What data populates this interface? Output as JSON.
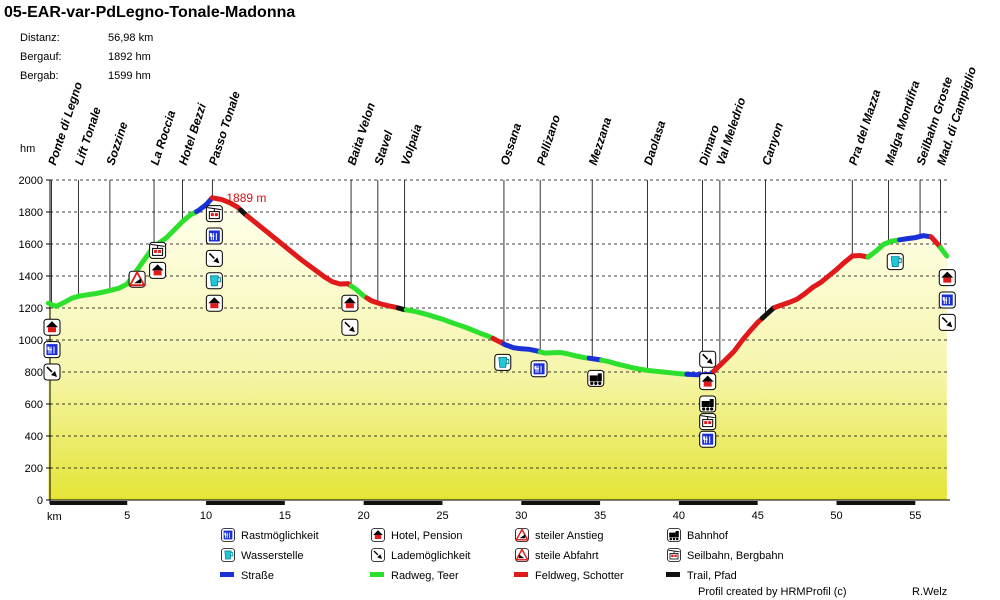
{
  "header": {
    "title": "05-EAR-var-PdLegno-Tonale-Madonna",
    "stats": [
      {
        "label": "Distanz:",
        "value": "56,98 km"
      },
      {
        "label": "Bergauf:",
        "value": "1892 hm"
      },
      {
        "label": "Bergab:",
        "value": "1599 hm"
      }
    ]
  },
  "chart_data": {
    "type": "area",
    "ylabel": "hm",
    "xlabel": "km",
    "xlim": [
      0,
      57
    ],
    "ylim": [
      0,
      2000
    ],
    "xticks": [
      5,
      10,
      15,
      20,
      25,
      30,
      35,
      40,
      45,
      50,
      55
    ],
    "yticks": [
      0,
      200,
      400,
      600,
      800,
      1000,
      1200,
      1400,
      1600,
      1800,
      2000
    ],
    "grid": "dashed horizontal",
    "max_label": "1889 m",
    "max_point": {
      "x": 10.4,
      "y": 1889
    },
    "profile": [
      [
        0,
        1230
      ],
      [
        0.5,
        1210
      ],
      [
        1,
        1235
      ],
      [
        1.5,
        1262
      ],
      [
        2,
        1275
      ],
      [
        2.5,
        1283
      ],
      [
        3,
        1290
      ],
      [
        3.5,
        1300
      ],
      [
        4,
        1312
      ],
      [
        4.5,
        1325
      ],
      [
        5,
        1350
      ],
      [
        5.5,
        1420
      ],
      [
        6,
        1490
      ],
      [
        6.5,
        1560
      ],
      [
        7,
        1605
      ],
      [
        7.5,
        1640
      ],
      [
        8,
        1690
      ],
      [
        8.5,
        1740
      ],
      [
        9,
        1782
      ],
      [
        9.5,
        1808
      ],
      [
        10,
        1845
      ],
      [
        10.4,
        1889
      ],
      [
        11,
        1878
      ],
      [
        11.5,
        1858
      ],
      [
        12,
        1830
      ],
      [
        12.5,
        1785
      ],
      [
        13,
        1745
      ],
      [
        13.5,
        1705
      ],
      [
        14,
        1665
      ],
      [
        14.5,
        1625
      ],
      [
        15,
        1585
      ],
      [
        15.5,
        1545
      ],
      [
        16,
        1505
      ],
      [
        16.5,
        1468
      ],
      [
        17,
        1432
      ],
      [
        17.5,
        1395
      ],
      [
        18,
        1365
      ],
      [
        18.5,
        1350
      ],
      [
        19,
        1352
      ],
      [
        19.5,
        1318
      ],
      [
        20,
        1275
      ],
      [
        20.5,
        1245
      ],
      [
        21,
        1228
      ],
      [
        21.5,
        1215
      ],
      [
        22,
        1205
      ],
      [
        22.5,
        1192
      ],
      [
        23,
        1184
      ],
      [
        23.5,
        1173
      ],
      [
        24,
        1160
      ],
      [
        24.5,
        1145
      ],
      [
        25,
        1130
      ],
      [
        25.5,
        1112
      ],
      [
        26,
        1095
      ],
      [
        26.5,
        1078
      ],
      [
        27,
        1058
      ],
      [
        27.5,
        1038
      ],
      [
        28,
        1020
      ],
      [
        28.5,
        995
      ],
      [
        29,
        970
      ],
      [
        29.5,
        952
      ],
      [
        30,
        945
      ],
      [
        30.5,
        942
      ],
      [
        31,
        932
      ],
      [
        31.5,
        918
      ],
      [
        32,
        920
      ],
      [
        32.5,
        922
      ],
      [
        33,
        912
      ],
      [
        33.5,
        900
      ],
      [
        34,
        890
      ],
      [
        34.5,
        884
      ],
      [
        35,
        876
      ],
      [
        35.5,
        866
      ],
      [
        36,
        852
      ],
      [
        36.5,
        840
      ],
      [
        37,
        828
      ],
      [
        37.5,
        818
      ],
      [
        38,
        810
      ],
      [
        38.5,
        805
      ],
      [
        39,
        800
      ],
      [
        39.5,
        795
      ],
      [
        40,
        790
      ],
      [
        40.5,
        786
      ],
      [
        41,
        784
      ],
      [
        41.5,
        783
      ],
      [
        42,
        786
      ],
      [
        42.5,
        832
      ],
      [
        43,
        880
      ],
      [
        43.5,
        930
      ],
      [
        44,
        995
      ],
      [
        44.5,
        1055
      ],
      [
        45,
        1110
      ],
      [
        45.5,
        1155
      ],
      [
        46,
        1200
      ],
      [
        46.5,
        1218
      ],
      [
        47,
        1235
      ],
      [
        47.5,
        1255
      ],
      [
        48,
        1290
      ],
      [
        48.5,
        1330
      ],
      [
        49,
        1360
      ],
      [
        49.5,
        1400
      ],
      [
        50,
        1440
      ],
      [
        50.5,
        1485
      ],
      [
        51,
        1525
      ],
      [
        51.5,
        1528
      ],
      [
        52,
        1518
      ],
      [
        52.5,
        1555
      ],
      [
        53,
        1598
      ],
      [
        53.5,
        1618
      ],
      [
        54,
        1626
      ],
      [
        54.5,
        1634
      ],
      [
        55,
        1640
      ],
      [
        55.5,
        1652
      ],
      [
        56,
        1645
      ],
      [
        56.5,
        1590
      ],
      [
        57,
        1525
      ]
    ],
    "segments": [
      {
        "from": 0,
        "to": 9.4,
        "surface": "Radweg, Teer"
      },
      {
        "from": 9.4,
        "to": 10.4,
        "surface": "Straße"
      },
      {
        "from": 10.4,
        "to": 12.2,
        "surface": "Feldweg, Schotter"
      },
      {
        "from": 12.2,
        "to": 12.6,
        "surface": "Trail, Pfad"
      },
      {
        "from": 12.6,
        "to": 19.2,
        "surface": "Feldweg, Schotter"
      },
      {
        "from": 19.2,
        "to": 20.2,
        "surface": "Radweg, Teer"
      },
      {
        "from": 20.2,
        "to": 22.2,
        "surface": "Feldweg, Schotter"
      },
      {
        "from": 22.2,
        "to": 22.7,
        "surface": "Trail, Pfad"
      },
      {
        "from": 22.7,
        "to": 28.2,
        "surface": "Radweg, Teer"
      },
      {
        "from": 28.2,
        "to": 28.9,
        "surface": "Feldweg, Schotter"
      },
      {
        "from": 28.9,
        "to": 31.2,
        "surface": "Straße"
      },
      {
        "from": 31.2,
        "to": 34.3,
        "surface": "Radweg, Teer"
      },
      {
        "from": 34.3,
        "to": 35.1,
        "surface": "Straße"
      },
      {
        "from": 35.1,
        "to": 40.5,
        "surface": "Radweg, Teer"
      },
      {
        "from": 40.5,
        "to": 42.2,
        "surface": "Straße"
      },
      {
        "from": 42.2,
        "to": 45.3,
        "surface": "Feldweg, Schotter"
      },
      {
        "from": 45.3,
        "to": 46.1,
        "surface": "Trail, Pfad"
      },
      {
        "from": 46.1,
        "to": 52.0,
        "surface": "Feldweg, Schotter"
      },
      {
        "from": 52.0,
        "to": 54.0,
        "surface": "Radweg, Teer"
      },
      {
        "from": 54.0,
        "to": 56.0,
        "surface": "Straße"
      },
      {
        "from": 56.0,
        "to": 56.6,
        "surface": "Feldweg, Schotter"
      },
      {
        "from": 56.6,
        "to": 57,
        "surface": "Radweg, Teer"
      }
    ],
    "places": [
      {
        "name": "Ponte di Legno",
        "km": 0.2
      },
      {
        "name": "Lift Tonale",
        "km": 1.9
      },
      {
        "name": "Sozzine",
        "km": 3.9
      },
      {
        "name": "La Roccia",
        "km": 6.7
      },
      {
        "name": "Hotel Bezzi",
        "km": 8.5
      },
      {
        "name": "Passo Tonale",
        "km": 10.4
      },
      {
        "name": "Baita Velon",
        "km": 19.2
      },
      {
        "name": "Stavel",
        "km": 20.9
      },
      {
        "name": "Volpaia",
        "km": 22.6
      },
      {
        "name": "Ossana",
        "km": 28.9
      },
      {
        "name": "Pellizano",
        "km": 31.2
      },
      {
        "name": "Mezzana",
        "km": 34.5
      },
      {
        "name": "Daolasa",
        "km": 38.0
      },
      {
        "name": "Dimaro",
        "km": 41.5
      },
      {
        "name": "Val Meledrio",
        "km": 42.6
      },
      {
        "name": "Canyon",
        "km": 45.5
      },
      {
        "name": "Pra del Mazza",
        "km": 51.0
      },
      {
        "name": "Malga Mondifra",
        "km": 53.3
      },
      {
        "name": "Seilbahn Groste",
        "km": 55.3
      },
      {
        "name": "Mad. di Campiglio",
        "km": 56.6
      }
    ],
    "symbols": [
      {
        "type": "hotel",
        "km": 0.1,
        "alt": 1080
      },
      {
        "type": "rast",
        "km": 0.1,
        "alt": 940
      },
      {
        "type": "laden",
        "km": 0.1,
        "alt": 800
      },
      {
        "type": "steep-up",
        "km": 5.5,
        "alt": 1380
      },
      {
        "type": "seilbahn",
        "km": 6.8,
        "alt": 1560
      },
      {
        "type": "hotel",
        "km": 6.8,
        "alt": 1435
      },
      {
        "type": "seilbahn",
        "km": 10.4,
        "alt": 1790
      },
      {
        "type": "rast",
        "km": 10.4,
        "alt": 1650
      },
      {
        "type": "laden",
        "km": 10.4,
        "alt": 1510
      },
      {
        "type": "wasser",
        "km": 10.4,
        "alt": 1370
      },
      {
        "type": "hotel",
        "km": 10.4,
        "alt": 1230
      },
      {
        "type": "hotel",
        "km": 19.0,
        "alt": 1230
      },
      {
        "type": "laden",
        "km": 19.0,
        "alt": 1080
      },
      {
        "type": "wasser",
        "km": 28.7,
        "alt": 860
      },
      {
        "type": "rast",
        "km": 31.0,
        "alt": 820
      },
      {
        "type": "bahnhof",
        "km": 34.6,
        "alt": 760
      },
      {
        "type": "laden",
        "km": 41.7,
        "alt": 880
      },
      {
        "type": "hotel",
        "km": 41.7,
        "alt": 740
      },
      {
        "type": "bahnhof",
        "km": 41.7,
        "alt": 600
      },
      {
        "type": "seilbahn",
        "km": 41.7,
        "alt": 490
      },
      {
        "type": "rast",
        "km": 41.7,
        "alt": 380
      },
      {
        "type": "wasser",
        "km": 53.6,
        "alt": 1490
      },
      {
        "type": "hotel",
        "km": 56.9,
        "alt": 1390
      },
      {
        "type": "rast",
        "km": 56.9,
        "alt": 1250
      },
      {
        "type": "laden",
        "km": 56.9,
        "alt": 1110
      }
    ]
  },
  "legend": {
    "items": [
      {
        "icon": "rast",
        "label": "Rastmöglichkeit"
      },
      {
        "icon": "hotel",
        "label": "Hotel, Pension"
      },
      {
        "icon": "steep-up",
        "label": "steiler Anstieg"
      },
      {
        "icon": "bahnhof",
        "label": "Bahnhof"
      },
      {
        "icon": "wasser",
        "label": "Wasserstelle"
      },
      {
        "icon": "laden",
        "label": "Lademöglichkeit"
      },
      {
        "icon": "steep-down",
        "label": "steile Abfahrt"
      },
      {
        "icon": "seilbahn",
        "label": "Seilbahn, Bergbahn"
      },
      {
        "icon": "line",
        "surface": "Straße",
        "label": "Straße"
      },
      {
        "icon": "line",
        "surface": "Radweg, Teer",
        "label": "Radweg, Teer"
      },
      {
        "icon": "line",
        "surface": "Feldweg, Schotter",
        "label": "Feldweg, Schotter"
      },
      {
        "icon": "line",
        "surface": "Trail, Pfad",
        "label": "Trail, Pfad"
      }
    ]
  },
  "colors": {
    "Straße": "#1a2fd6",
    "Radweg, Teer": "#2ee02e",
    "Feldweg, Schotter": "#e01a1a",
    "Trail, Pfad": "#111111",
    "max_label": "#d01010"
  },
  "footer": {
    "credit": "Profil created by HRMProfil (c)",
    "author": "R.Welz"
  }
}
